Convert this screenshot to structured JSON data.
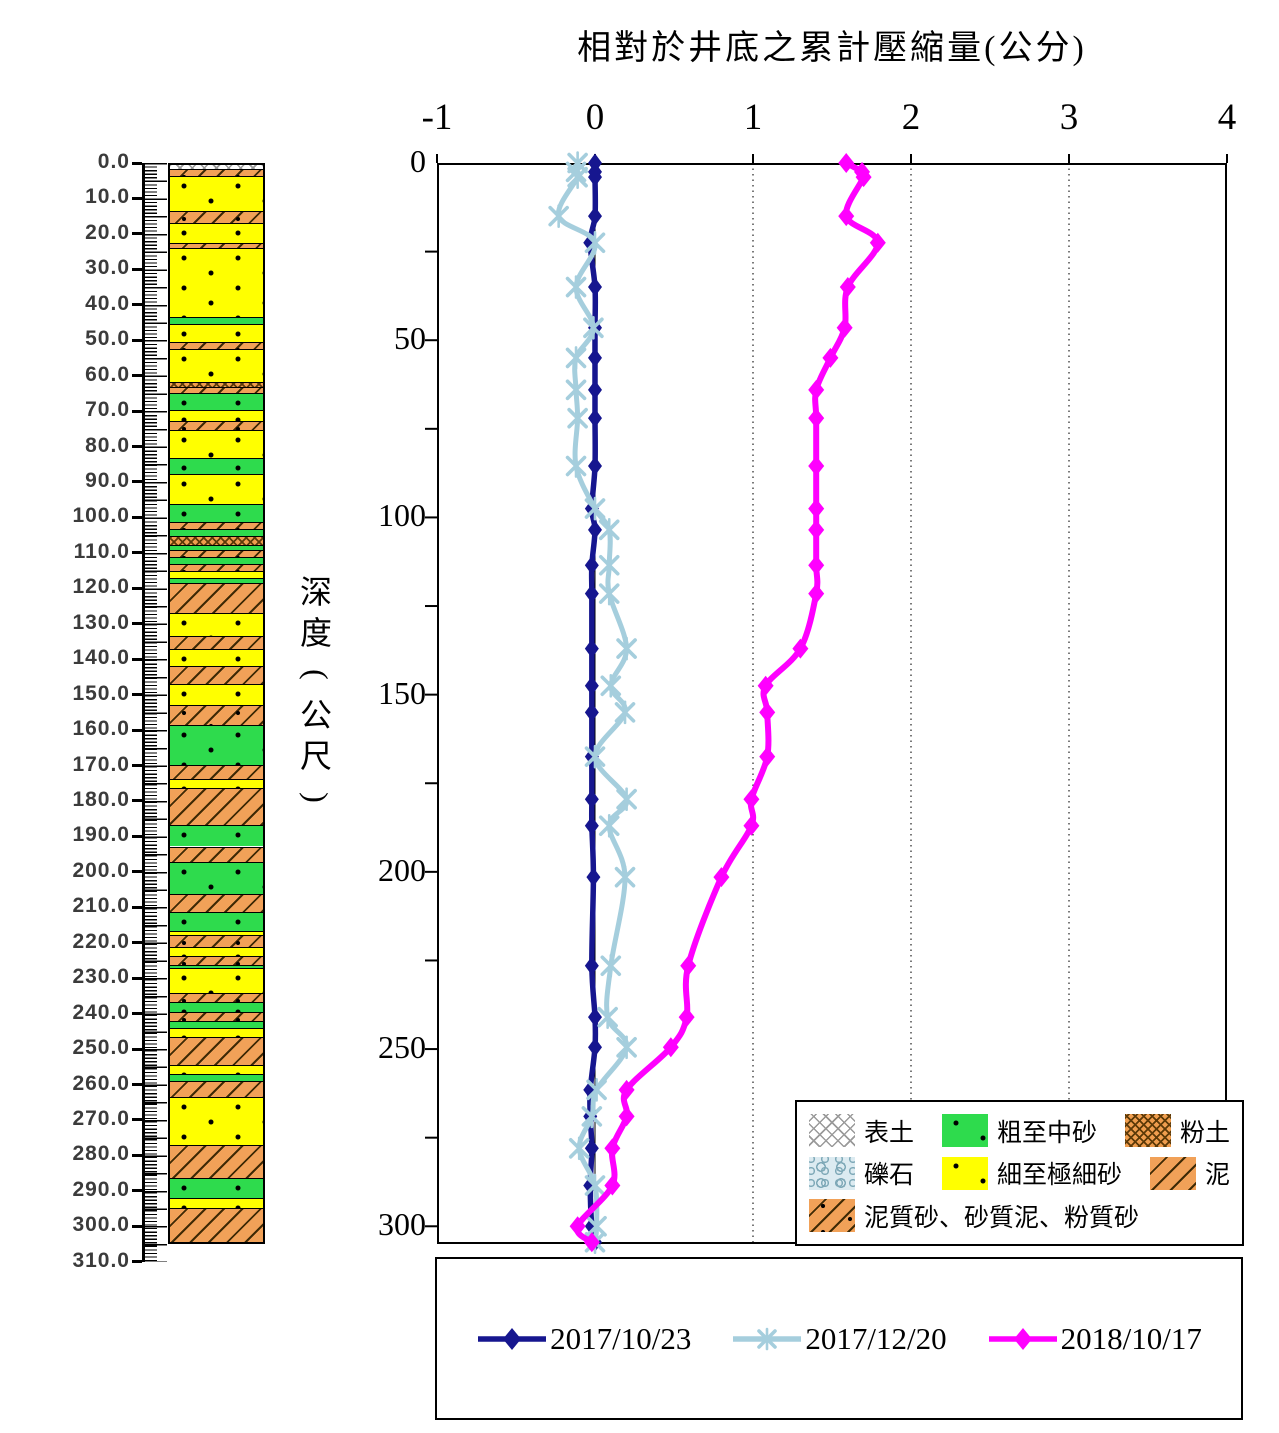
{
  "title": "相對於井底之累計壓縮量(公分)",
  "y_axis_label": "深度(公尺)",
  "colors": {
    "series_2017_10_23": "#16168f",
    "series_2017_12_20": "#a5cedd",
    "series_2018_10_17": "#ff00ff",
    "fine_sand_yellow": "#ffff00",
    "coarse_sand_green": "#2edb4d",
    "mud_orange": "#f1a158",
    "axis_black": "#000000"
  },
  "x_axis": {
    "tick_labels": [
      "-1",
      "0",
      "1",
      "2",
      "3",
      "4"
    ],
    "tick_values": [
      -1,
      0,
      1,
      2,
      3,
      4
    ]
  },
  "y_axis": {
    "tick_labels": [
      "0",
      "50",
      "100",
      "150",
      "200",
      "250",
      "300"
    ],
    "tick_values": [
      0,
      50,
      100,
      150,
      200,
      250,
      300
    ],
    "minor_tick_step": 25
  },
  "depth_ruler": {
    "labels": [
      "0.0",
      "10.0",
      "20.0",
      "30.0",
      "40.0",
      "50.0",
      "60.0",
      "70.0",
      "80.0",
      "90.0",
      "100.0",
      "110.0",
      "120.0",
      "130.0",
      "140.0",
      "150.0",
      "160.0",
      "170.0",
      "180.0",
      "190.0",
      "200.0",
      "210.0",
      "220.0",
      "230.0",
      "240.0",
      "250.0",
      "260.0",
      "270.0",
      "280.0",
      "290.0",
      "300.0",
      "310.0"
    ],
    "max_depth": 310
  },
  "lithology": {
    "type_names": {
      "topsoil": "表土",
      "gravel": "礫石",
      "coarse_sand": "粗至中砂",
      "fine_sand": "細至極細砂",
      "silt": "粉土",
      "mud": "泥",
      "muddy_sand": "泥質砂、砂質泥、粉質砂"
    },
    "legend_rows": [
      [
        {
          "type": "topsoil",
          "label": "表土"
        },
        {
          "type": "coarse_sand",
          "label": "粗至中砂"
        },
        {
          "type": "silt",
          "label": "粉土"
        }
      ],
      [
        {
          "type": "gravel",
          "label": "礫石"
        },
        {
          "type": "fine_sand",
          "label": "細至極細砂"
        },
        {
          "type": "mud",
          "label": "泥"
        }
      ],
      [
        {
          "type": "muddy_sand",
          "label": "泥質砂、砂質泥、粉質砂"
        }
      ]
    ],
    "column_layers": [
      {
        "from": 0,
        "to": 1,
        "type": "topsoil"
      },
      {
        "from": 1,
        "to": 3,
        "type": "muddy_sand"
      },
      {
        "from": 3,
        "to": 13,
        "type": "fine_sand"
      },
      {
        "from": 13,
        "to": 16.5,
        "type": "muddy_sand"
      },
      {
        "from": 16.5,
        "to": 22,
        "type": "fine_sand"
      },
      {
        "from": 22,
        "to": 23.5,
        "type": "muddy_sand"
      },
      {
        "from": 23.5,
        "to": 43,
        "type": "fine_sand"
      },
      {
        "from": 43,
        "to": 45,
        "type": "coarse_sand"
      },
      {
        "from": 45,
        "to": 50,
        "type": "fine_sand"
      },
      {
        "from": 50,
        "to": 52,
        "type": "muddy_sand"
      },
      {
        "from": 52,
        "to": 61.5,
        "type": "fine_sand"
      },
      {
        "from": 61.5,
        "to": 63,
        "type": "silt"
      },
      {
        "from": 63,
        "to": 64.5,
        "type": "muddy_sand"
      },
      {
        "from": 64.5,
        "to": 69.5,
        "type": "coarse_sand"
      },
      {
        "from": 69.5,
        "to": 72.5,
        "type": "fine_sand"
      },
      {
        "from": 72.5,
        "to": 75,
        "type": "muddy_sand"
      },
      {
        "from": 75,
        "to": 83,
        "type": "fine_sand"
      },
      {
        "from": 83,
        "to": 87.5,
        "type": "coarse_sand"
      },
      {
        "from": 87.5,
        "to": 96,
        "type": "fine_sand"
      },
      {
        "from": 96,
        "to": 101,
        "type": "coarse_sand"
      },
      {
        "from": 101,
        "to": 103,
        "type": "muddy_sand"
      },
      {
        "from": 103,
        "to": 105,
        "type": "coarse_sand"
      },
      {
        "from": 105,
        "to": 107.5,
        "type": "silt"
      },
      {
        "from": 107.5,
        "to": 109,
        "type": "coarse_sand"
      },
      {
        "from": 109,
        "to": 111,
        "type": "muddy_sand"
      },
      {
        "from": 111,
        "to": 113,
        "type": "coarse_sand"
      },
      {
        "from": 113,
        "to": 115,
        "type": "muddy_sand"
      },
      {
        "from": 115,
        "to": 117,
        "type": "fine_sand"
      },
      {
        "from": 117,
        "to": 118.5,
        "type": "coarse_sand"
      },
      {
        "from": 118.5,
        "to": 127,
        "type": "mud"
      },
      {
        "from": 127,
        "to": 133.5,
        "type": "fine_sand"
      },
      {
        "from": 133.5,
        "to": 137,
        "type": "mud"
      },
      {
        "from": 137,
        "to": 142,
        "type": "fine_sand"
      },
      {
        "from": 142,
        "to": 147,
        "type": "mud"
      },
      {
        "from": 147,
        "to": 153,
        "type": "fine_sand"
      },
      {
        "from": 153,
        "to": 158.5,
        "type": "muddy_sand"
      },
      {
        "from": 158.5,
        "to": 170,
        "type": "coarse_sand"
      },
      {
        "from": 170,
        "to": 174,
        "type": "mud"
      },
      {
        "from": 174,
        "to": 176.5,
        "type": "fine_sand"
      },
      {
        "from": 176.5,
        "to": 187,
        "type": "mud"
      },
      {
        "from": 187,
        "to": 193,
        "type": "coarse_sand"
      },
      {
        "from": 193,
        "to": 197.5,
        "type": "mud"
      },
      {
        "from": 197.5,
        "to": 206.5,
        "type": "coarse_sand"
      },
      {
        "from": 206.5,
        "to": 211.5,
        "type": "mud"
      },
      {
        "from": 211.5,
        "to": 217,
        "type": "coarse_sand"
      },
      {
        "from": 217,
        "to": 218,
        "type": "fine_sand"
      },
      {
        "from": 218,
        "to": 221.5,
        "type": "muddy_sand"
      },
      {
        "from": 221.5,
        "to": 224,
        "type": "fine_sand"
      },
      {
        "from": 224,
        "to": 226.5,
        "type": "muddy_sand"
      },
      {
        "from": 226.5,
        "to": 227.5,
        "type": "coarse_sand"
      },
      {
        "from": 227.5,
        "to": 234.5,
        "type": "fine_sand"
      },
      {
        "from": 234.5,
        "to": 237,
        "type": "muddy_sand"
      },
      {
        "from": 237,
        "to": 240,
        "type": "coarse_sand"
      },
      {
        "from": 240,
        "to": 242.5,
        "type": "muddy_sand"
      },
      {
        "from": 242.5,
        "to": 244.5,
        "type": "coarse_sand"
      },
      {
        "from": 244.5,
        "to": 247,
        "type": "fine_sand"
      },
      {
        "from": 247,
        "to": 255,
        "type": "mud"
      },
      {
        "from": 255,
        "to": 257.5,
        "type": "fine_sand"
      },
      {
        "from": 257.5,
        "to": 259.5,
        "type": "coarse_sand"
      },
      {
        "from": 259.5,
        "to": 264,
        "type": "mud"
      },
      {
        "from": 264,
        "to": 277.5,
        "type": "fine_sand"
      },
      {
        "from": 277.5,
        "to": 287,
        "type": "mud"
      },
      {
        "from": 287,
        "to": 292.5,
        "type": "coarse_sand"
      },
      {
        "from": 292.5,
        "to": 295.5,
        "type": "fine_sand"
      },
      {
        "from": 295.5,
        "to": 305,
        "type": "mud"
      }
    ]
  },
  "chart_data": {
    "type": "line",
    "title": "相對於井底之累計壓縮量(公分)",
    "xlabel": "相對於井底之累計壓縮量(公分)",
    "ylabel": "深度(公尺)",
    "xlim": [
      -1,
      4
    ],
    "x_ticks": [
      -1,
      0,
      1,
      2,
      3,
      4
    ],
    "ylim": [
      0,
      305
    ],
    "y_ticks": [
      0,
      50,
      100,
      150,
      200,
      250,
      300
    ],
    "y_direction": "down",
    "grid": {
      "vertical_dotted_at": [
        1,
        2,
        3
      ],
      "solid_line_at": 0
    },
    "legend_position": "bottom",
    "depths_m": [
      0,
      2.5,
      4,
      15,
      22.5,
      35,
      46.5,
      55,
      64,
      72,
      85.5,
      97.5,
      103.5,
      113.5,
      121.5,
      137,
      147.5,
      155,
      167.5,
      179.5,
      187,
      201.5,
      226.5,
      241,
      249.5,
      261.5,
      269,
      278,
      288.5,
      300,
      304.5
    ],
    "series": [
      {
        "name": "2017/10/23",
        "color": "#16168f",
        "marker": "diamond",
        "values": [
          0,
          0,
          0,
          0,
          -0.03,
          0,
          0,
          0,
          0,
          0,
          0,
          -0.02,
          0,
          -0.02,
          -0.02,
          -0.02,
          -0.02,
          -0.02,
          -0.02,
          -0.02,
          -0.02,
          -0.01,
          -0.02,
          0,
          0,
          -0.03,
          -0.03,
          -0.02,
          -0.03,
          -0.02,
          0
        ]
      },
      {
        "name": "2017/12/20",
        "color": "#a5cedd",
        "marker": "x",
        "values": [
          -0.11,
          -0.12,
          -0.11,
          -0.23,
          0,
          -0.12,
          -0.01,
          -0.12,
          -0.12,
          -0.11,
          -0.12,
          0,
          0.09,
          0.09,
          0.09,
          0.2,
          0.1,
          0.19,
          0,
          0.2,
          0.09,
          0.19,
          0.1,
          0.08,
          0.2,
          0.01,
          -0.02,
          -0.1,
          0,
          0.01,
          0
        ]
      },
      {
        "name": "2018/10/17",
        "color": "#ff00ff",
        "marker": "diamond",
        "values": [
          1.59,
          1.69,
          1.7,
          1.59,
          1.79,
          1.6,
          1.58,
          1.49,
          1.4,
          1.4,
          1.4,
          1.4,
          1.4,
          1.4,
          1.4,
          1.3,
          1.08,
          1.09,
          1.09,
          0.99,
          0.99,
          0.8,
          0.59,
          0.58,
          0.48,
          0.2,
          0.2,
          0.11,
          0.11,
          -0.11,
          -0.02
        ]
      }
    ]
  }
}
